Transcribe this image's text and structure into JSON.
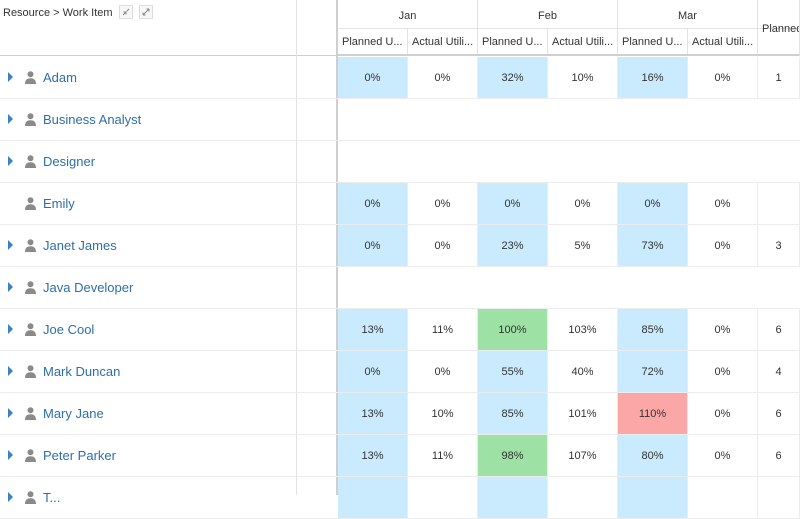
{
  "header": {
    "title": "Resource > Work Item",
    "collapse_icon": "collapse-icon",
    "expand_icon": "expand-icon"
  },
  "months": [
    "Jan",
    "Feb",
    "Mar",
    ""
  ],
  "column_headers": [
    "Planned U...",
    "Actual Utili...",
    "Planned U...",
    "Actual Utili...",
    "Planned U...",
    "Actual Utili...",
    "Planned"
  ],
  "colors": {
    "planned": "#c9ebfd",
    "over": "#9ee1a4",
    "alert": "#fca7a7",
    "link": "#2d6fa9"
  },
  "rows": [
    {
      "name": "Adam",
      "expandable": true,
      "cells": [
        {
          "v": "0%",
          "c": "blue"
        },
        {
          "v": "0%"
        },
        {
          "v": "32%",
          "c": "blue"
        },
        {
          "v": "10%"
        },
        {
          "v": "16%",
          "c": "blue"
        },
        {
          "v": "0%"
        },
        {
          "v": "1"
        }
      ]
    },
    {
      "name": "Business Analyst",
      "expandable": true,
      "cells": []
    },
    {
      "name": "Designer",
      "expandable": true,
      "cells": []
    },
    {
      "name": "Emily",
      "expandable": false,
      "cells": [
        {
          "v": "0%",
          "c": "blue"
        },
        {
          "v": "0%"
        },
        {
          "v": "0%",
          "c": "blue"
        },
        {
          "v": "0%"
        },
        {
          "v": "0%",
          "c": "blue"
        },
        {
          "v": "0%"
        },
        {
          "v": ""
        }
      ]
    },
    {
      "name": "Janet James",
      "expandable": true,
      "cells": [
        {
          "v": "0%",
          "c": "blue"
        },
        {
          "v": "0%"
        },
        {
          "v": "23%",
          "c": "blue"
        },
        {
          "v": "5%"
        },
        {
          "v": "73%",
          "c": "blue"
        },
        {
          "v": "0%"
        },
        {
          "v": "3"
        }
      ]
    },
    {
      "name": "Java Developer",
      "expandable": true,
      "cells": []
    },
    {
      "name": "Joe Cool",
      "expandable": true,
      "cells": [
        {
          "v": "13%",
          "c": "blue"
        },
        {
          "v": "11%"
        },
        {
          "v": "100%",
          "c": "green"
        },
        {
          "v": "103%"
        },
        {
          "v": "85%",
          "c": "blue"
        },
        {
          "v": "0%"
        },
        {
          "v": "6"
        }
      ]
    },
    {
      "name": "Mark Duncan",
      "expandable": true,
      "cells": [
        {
          "v": "0%",
          "c": "blue"
        },
        {
          "v": "0%"
        },
        {
          "v": "55%",
          "c": "blue"
        },
        {
          "v": "40%"
        },
        {
          "v": "72%",
          "c": "blue"
        },
        {
          "v": "0%"
        },
        {
          "v": "4"
        }
      ]
    },
    {
      "name": "Mary Jane",
      "expandable": true,
      "cells": [
        {
          "v": "13%",
          "c": "blue"
        },
        {
          "v": "10%"
        },
        {
          "v": "85%",
          "c": "blue"
        },
        {
          "v": "101%"
        },
        {
          "v": "110%",
          "c": "red"
        },
        {
          "v": "0%"
        },
        {
          "v": "6"
        }
      ]
    },
    {
      "name": "Peter Parker",
      "expandable": true,
      "cells": [
        {
          "v": "13%",
          "c": "blue"
        },
        {
          "v": "11%"
        },
        {
          "v": "98%",
          "c": "green"
        },
        {
          "v": "107%"
        },
        {
          "v": "80%",
          "c": "blue"
        },
        {
          "v": "0%"
        },
        {
          "v": "6"
        }
      ]
    },
    {
      "name": "T...",
      "expandable": true,
      "cells": [
        {
          "v": "",
          "c": "blue"
        },
        {
          "v": ""
        },
        {
          "v": "",
          "c": "blue"
        },
        {
          "v": ""
        },
        {
          "v": "",
          "c": "blue"
        },
        {
          "v": ""
        },
        {
          "v": ""
        }
      ]
    }
  ]
}
